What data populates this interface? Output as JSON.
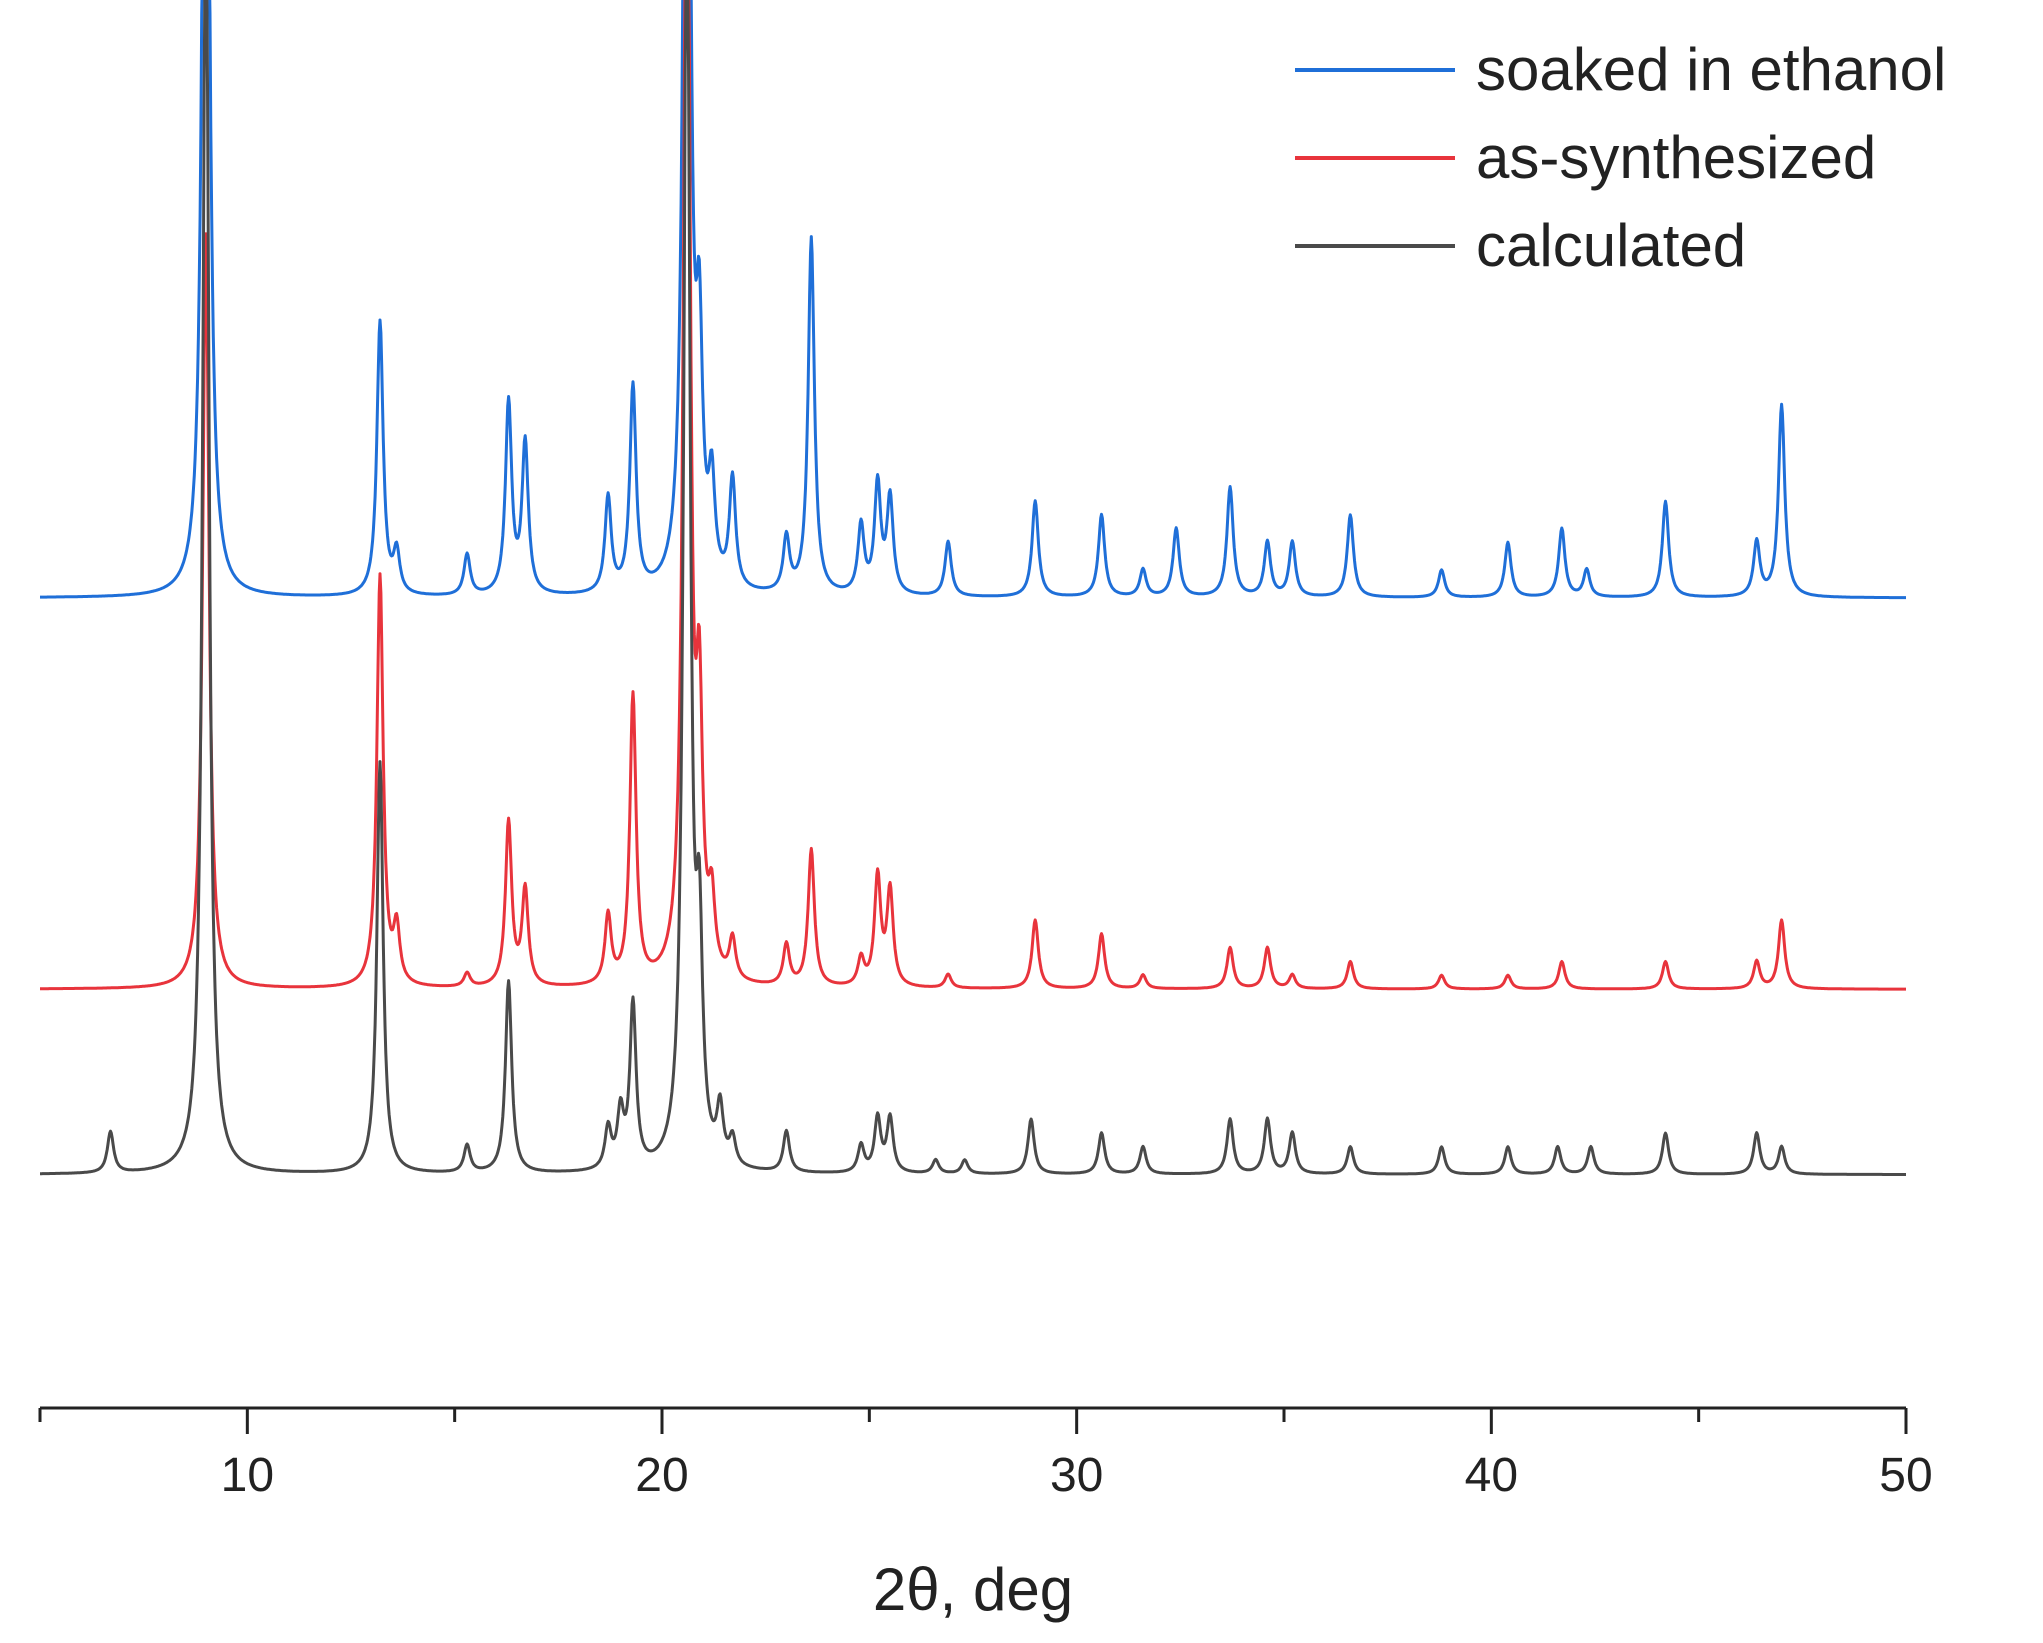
{
  "chart_data": {
    "type": "line",
    "title": "",
    "xlabel": "2θ, deg",
    "ylabel": "",
    "xlim": [
      5,
      50
    ],
    "xticks_major": [
      10,
      20,
      30,
      40,
      50
    ],
    "xtick_labels": [
      "10",
      "20",
      "30",
      "40",
      "50"
    ],
    "xticks_minor": [
      5,
      15,
      25,
      35,
      45
    ],
    "yaxis_shown": false,
    "legend_position": "top-right",
    "series": [
      {
        "name": "soaked in ethanol",
        "color": "#1f6fd8",
        "baseline": 0.59,
        "peaks": [
          [
            9.0,
            0.95
          ],
          [
            13.2,
            0.2
          ],
          [
            13.6,
            0.03
          ],
          [
            15.3,
            0.03
          ],
          [
            16.3,
            0.14
          ],
          [
            16.7,
            0.11
          ],
          [
            18.7,
            0.07
          ],
          [
            19.3,
            0.15
          ],
          [
            20.6,
            0.95
          ],
          [
            20.9,
            0.16
          ],
          [
            21.2,
            0.07
          ],
          [
            21.7,
            0.08
          ],
          [
            23.0,
            0.04
          ],
          [
            23.6,
            0.26
          ],
          [
            24.8,
            0.05
          ],
          [
            25.2,
            0.08
          ],
          [
            25.5,
            0.07
          ],
          [
            26.9,
            0.04
          ],
          [
            29.0,
            0.07
          ],
          [
            30.6,
            0.06
          ],
          [
            31.6,
            0.02
          ],
          [
            32.4,
            0.05
          ],
          [
            33.7,
            0.08
          ],
          [
            34.6,
            0.04
          ],
          [
            35.2,
            0.04
          ],
          [
            36.6,
            0.06
          ],
          [
            38.8,
            0.02
          ],
          [
            40.4,
            0.04
          ],
          [
            41.7,
            0.05
          ],
          [
            42.3,
            0.02
          ],
          [
            44.2,
            0.07
          ],
          [
            46.4,
            0.04
          ],
          [
            47.0,
            0.14
          ]
        ]
      },
      {
        "name": "as-synthesized",
        "color": "#e8343c",
        "baseline": 0.305,
        "peaks": [
          [
            9.0,
            0.55
          ],
          [
            13.2,
            0.3
          ],
          [
            13.6,
            0.04
          ],
          [
            15.3,
            0.01
          ],
          [
            16.3,
            0.12
          ],
          [
            16.7,
            0.07
          ],
          [
            18.7,
            0.05
          ],
          [
            19.3,
            0.21
          ],
          [
            20.6,
            0.95
          ],
          [
            20.9,
            0.18
          ],
          [
            21.2,
            0.05
          ],
          [
            21.7,
            0.03
          ],
          [
            23.0,
            0.03
          ],
          [
            23.6,
            0.1
          ],
          [
            24.8,
            0.02
          ],
          [
            25.2,
            0.08
          ],
          [
            25.5,
            0.07
          ],
          [
            26.9,
            0.01
          ],
          [
            29.0,
            0.05
          ],
          [
            30.6,
            0.04
          ],
          [
            31.6,
            0.01
          ],
          [
            33.7,
            0.03
          ],
          [
            34.6,
            0.03
          ],
          [
            35.2,
            0.01
          ],
          [
            36.6,
            0.02
          ],
          [
            38.8,
            0.01
          ],
          [
            40.4,
            0.01
          ],
          [
            41.7,
            0.02
          ],
          [
            44.2,
            0.02
          ],
          [
            46.4,
            0.02
          ],
          [
            47.0,
            0.05
          ]
        ]
      },
      {
        "name": "calculated",
        "color": "#4a4a4a",
        "baseline": 0.17,
        "peaks": [
          [
            6.7,
            0.03
          ],
          [
            9.0,
            0.95
          ],
          [
            13.2,
            0.3
          ],
          [
            15.3,
            0.02
          ],
          [
            16.3,
            0.14
          ],
          [
            18.7,
            0.03
          ],
          [
            19.0,
            0.04
          ],
          [
            19.3,
            0.12
          ],
          [
            20.6,
            0.95
          ],
          [
            20.9,
            0.15
          ],
          [
            21.4,
            0.04
          ],
          [
            21.7,
            0.02
          ],
          [
            23.0,
            0.03
          ],
          [
            24.8,
            0.02
          ],
          [
            25.2,
            0.04
          ],
          [
            25.5,
            0.04
          ],
          [
            26.6,
            0.01
          ],
          [
            27.3,
            0.01
          ],
          [
            28.9,
            0.04
          ],
          [
            30.6,
            0.03
          ],
          [
            31.6,
            0.02
          ],
          [
            33.7,
            0.04
          ],
          [
            34.6,
            0.04
          ],
          [
            35.2,
            0.03
          ],
          [
            36.6,
            0.02
          ],
          [
            38.8,
            0.02
          ],
          [
            40.4,
            0.02
          ],
          [
            41.6,
            0.02
          ],
          [
            42.4,
            0.02
          ],
          [
            44.2,
            0.03
          ],
          [
            46.4,
            0.03
          ],
          [
            47.0,
            0.02
          ]
        ]
      }
    ]
  }
}
